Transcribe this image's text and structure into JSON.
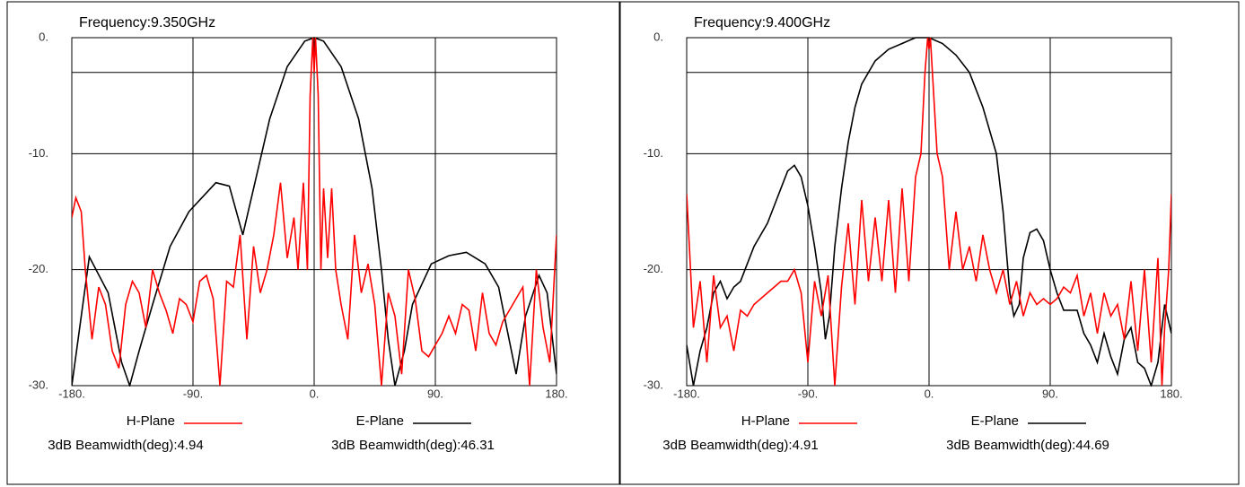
{
  "chart_data": [
    {
      "type": "line",
      "title": "Frequency:9.350GHz",
      "grid": true,
      "legend": "bottom",
      "xlim": [
        -180,
        180
      ],
      "ylim": [
        -30,
        0
      ],
      "xticks": [
        {
          "value": -180,
          "label": "-180."
        },
        {
          "value": -90,
          "label": "-90."
        },
        {
          "value": 0,
          "label": "0."
        },
        {
          "value": 90,
          "label": "90."
        },
        {
          "value": 180,
          "label": "180."
        }
      ],
      "yticks": [
        {
          "value": 0,
          "label": "0."
        },
        {
          "value": -10,
          "label": "-10."
        },
        {
          "value": -20,
          "label": "-20."
        },
        {
          "value": -30,
          "label": "-30."
        }
      ],
      "hlines": [
        -3
      ],
      "annotations": [
        "3dB Beamwidth(deg):4.94",
        "3dB Beamwidth(deg):46.31"
      ],
      "series": [
        {
          "name": "H-Plane",
          "color": "#ff0000",
          "x": [
            -180,
            -177,
            -173,
            -170,
            -165,
            -160,
            -155,
            -150,
            -145,
            -140,
            -135,
            -130,
            -125,
            -120,
            -115,
            -110,
            -105,
            -100,
            -95,
            -90,
            -85,
            -80,
            -75,
            -70,
            -65,
            -60,
            -55,
            -50,
            -45,
            -40,
            -35,
            -30,
            -25,
            -20,
            -15,
            -12,
            -8,
            -5,
            -3,
            -1,
            0,
            1,
            3,
            5,
            7,
            10,
            13,
            16,
            20,
            25,
            30,
            35,
            40,
            45,
            50,
            55,
            60,
            65,
            70,
            75,
            80,
            85,
            90,
            95,
            100,
            105,
            110,
            115,
            120,
            125,
            130,
            135,
            140,
            145,
            150,
            155,
            160,
            165,
            170,
            175,
            180
          ],
          "values": [
            -15.5,
            -13.8,
            -15,
            -20,
            -26,
            -21.5,
            -23,
            -27,
            -28.5,
            -23,
            -21,
            -22,
            -25,
            -20,
            -22,
            -23.5,
            -25.5,
            -22.5,
            -23,
            -24.5,
            -21,
            -20.5,
            -22.5,
            -30,
            -21,
            -21.5,
            -17,
            -26,
            -18,
            -22,
            -20,
            -17,
            -12.5,
            -19,
            -15.5,
            -20,
            -12.5,
            -20,
            -5,
            0,
            -3,
            0,
            -5,
            -20,
            -13,
            -19,
            -13,
            -20,
            -23,
            -26,
            -17,
            -22,
            -19.5,
            -23,
            -30,
            -22,
            -24,
            -29,
            -20,
            -22.5,
            -27,
            -27.5,
            -26.5,
            -25.5,
            -24,
            -25.5,
            -23,
            -23.5,
            -27,
            -22,
            -25.5,
            -26.5,
            -24.5,
            -23.5,
            -22.5,
            -21.5,
            -30,
            -20,
            -25,
            -28,
            -17
          ]
        },
        {
          "name": "E-Plane",
          "color": "#000000",
          "x": [
            -180,
            -167,
            -153,
            -143,
            -137,
            -130,
            -120,
            -107,
            -93,
            -73,
            -63,
            -53,
            -47,
            -33,
            -20,
            -7,
            0,
            7,
            20,
            33,
            43,
            50,
            55,
            60,
            67,
            73,
            87,
            100,
            113,
            127,
            137,
            143,
            150,
            157,
            167,
            173,
            180
          ],
          "values": [
            -30,
            -18.9,
            -22,
            -28,
            -30,
            -27,
            -23,
            -18,
            -15,
            -12.5,
            -12.8,
            -17,
            -14,
            -7,
            -2.5,
            -0.3,
            0,
            -0.3,
            -2.5,
            -7,
            -13,
            -20,
            -26,
            -30,
            -27,
            -23,
            -19.5,
            -18.8,
            -18.5,
            -19.5,
            -21.5,
            -25,
            -29,
            -24,
            -20.5,
            -22,
            -29
          ]
        }
      ]
    },
    {
      "type": "line",
      "title": "Frequency:9.400GHz",
      "grid": true,
      "legend": "bottom",
      "xlim": [
        -180,
        180
      ],
      "ylim": [
        -30,
        0
      ],
      "xticks": [
        {
          "value": -180,
          "label": "-180."
        },
        {
          "value": -90,
          "label": "-90."
        },
        {
          "value": 0,
          "label": "0."
        },
        {
          "value": 90,
          "label": "90."
        },
        {
          "value": 180,
          "label": "180."
        }
      ],
      "yticks": [
        {
          "value": 0,
          "label": "0."
        },
        {
          "value": -10,
          "label": "-10."
        },
        {
          "value": -20,
          "label": "-20."
        },
        {
          "value": -30,
          "label": "-30."
        }
      ],
      "hlines": [
        -3
      ],
      "annotations": [
        "3dB Beamwidth(deg):4.91",
        "3dB Beamwidth(deg):44.69"
      ],
      "series": [
        {
          "name": "H-Plane",
          "color": "#ff0000",
          "x": [
            -180,
            -178,
            -175,
            -170,
            -165,
            -160,
            -155,
            -150,
            -145,
            -140,
            -135,
            -130,
            -125,
            -120,
            -115,
            -110,
            -105,
            -100,
            -95,
            -90,
            -85,
            -80,
            -75,
            -70,
            -65,
            -60,
            -55,
            -50,
            -45,
            -40,
            -35,
            -30,
            -25,
            -20,
            -15,
            -10,
            -6,
            -3,
            -1,
            0,
            1,
            3,
            6,
            10,
            15,
            20,
            25,
            30,
            35,
            40,
            45,
            50,
            55,
            60,
            65,
            70,
            75,
            80,
            85,
            90,
            95,
            100,
            105,
            110,
            115,
            120,
            125,
            130,
            135,
            140,
            145,
            150,
            155,
            160,
            165,
            170,
            173,
            175,
            178,
            180
          ],
          "values": [
            -13.5,
            -18,
            -25,
            -21,
            -28,
            -20.5,
            -25,
            -24,
            -27,
            -23.5,
            -24,
            -23,
            -22.5,
            -22,
            -21.5,
            -21,
            -21,
            -20,
            -22,
            -28,
            -21,
            -24,
            -20.5,
            -30,
            -21.5,
            -16,
            -23,
            -14,
            -21,
            -15.5,
            -21,
            -14,
            -22,
            -13,
            -21,
            -12,
            -10,
            -3,
            0,
            -1,
            0,
            -4,
            -10,
            -12,
            -20,
            -15,
            -20,
            -18,
            -21,
            -17,
            -20,
            -22,
            -20,
            -23,
            -21,
            -24,
            -22,
            -23,
            -22.5,
            -23,
            -22.5,
            -21.5,
            -22,
            -20.5,
            -24,
            -22,
            -25.5,
            -22,
            -24,
            -23,
            -26,
            -21,
            -27,
            -20,
            -28,
            -19,
            -30,
            -25,
            -20,
            -13.5
          ]
        },
        {
          "name": "E-Plane",
          "color": "#000000",
          "x": [
            -180,
            -175,
            -170,
            -165,
            -160,
            -155,
            -150,
            -145,
            -140,
            -135,
            -130,
            -125,
            -120,
            -115,
            -110,
            -105,
            -100,
            -95,
            -90,
            -85,
            -80,
            -77,
            -74,
            -70,
            -65,
            -60,
            -55,
            -50,
            -40,
            -30,
            -20,
            -10,
            0,
            10,
            20,
            30,
            40,
            50,
            55,
            60,
            63,
            67,
            70,
            75,
            80,
            85,
            90,
            95,
            100,
            110,
            115,
            120,
            125,
            130,
            135,
            140,
            145,
            150,
            155,
            160,
            165,
            170,
            175,
            180
          ],
          "values": [
            -26.5,
            -30,
            -27,
            -25,
            -22,
            -21,
            -22.5,
            -21.5,
            -21,
            -19.5,
            -18,
            -17,
            -16,
            -14.5,
            -13,
            -11.5,
            -11,
            -12,
            -14.5,
            -18,
            -22,
            -26,
            -24,
            -18,
            -13,
            -9,
            -6,
            -4,
            -2,
            -1,
            -0.5,
            0,
            0,
            -0.5,
            -1.5,
            -3,
            -6,
            -10,
            -15,
            -22,
            -24,
            -23,
            -19,
            -16.8,
            -16.5,
            -17.5,
            -20,
            -22,
            -23.5,
            -23.5,
            -25.5,
            -26.5,
            -28,
            -25.5,
            -27.5,
            -29,
            -26,
            -25,
            -28,
            -28.5,
            -30,
            -28,
            -23,
            -25.5
          ]
        }
      ]
    }
  ]
}
